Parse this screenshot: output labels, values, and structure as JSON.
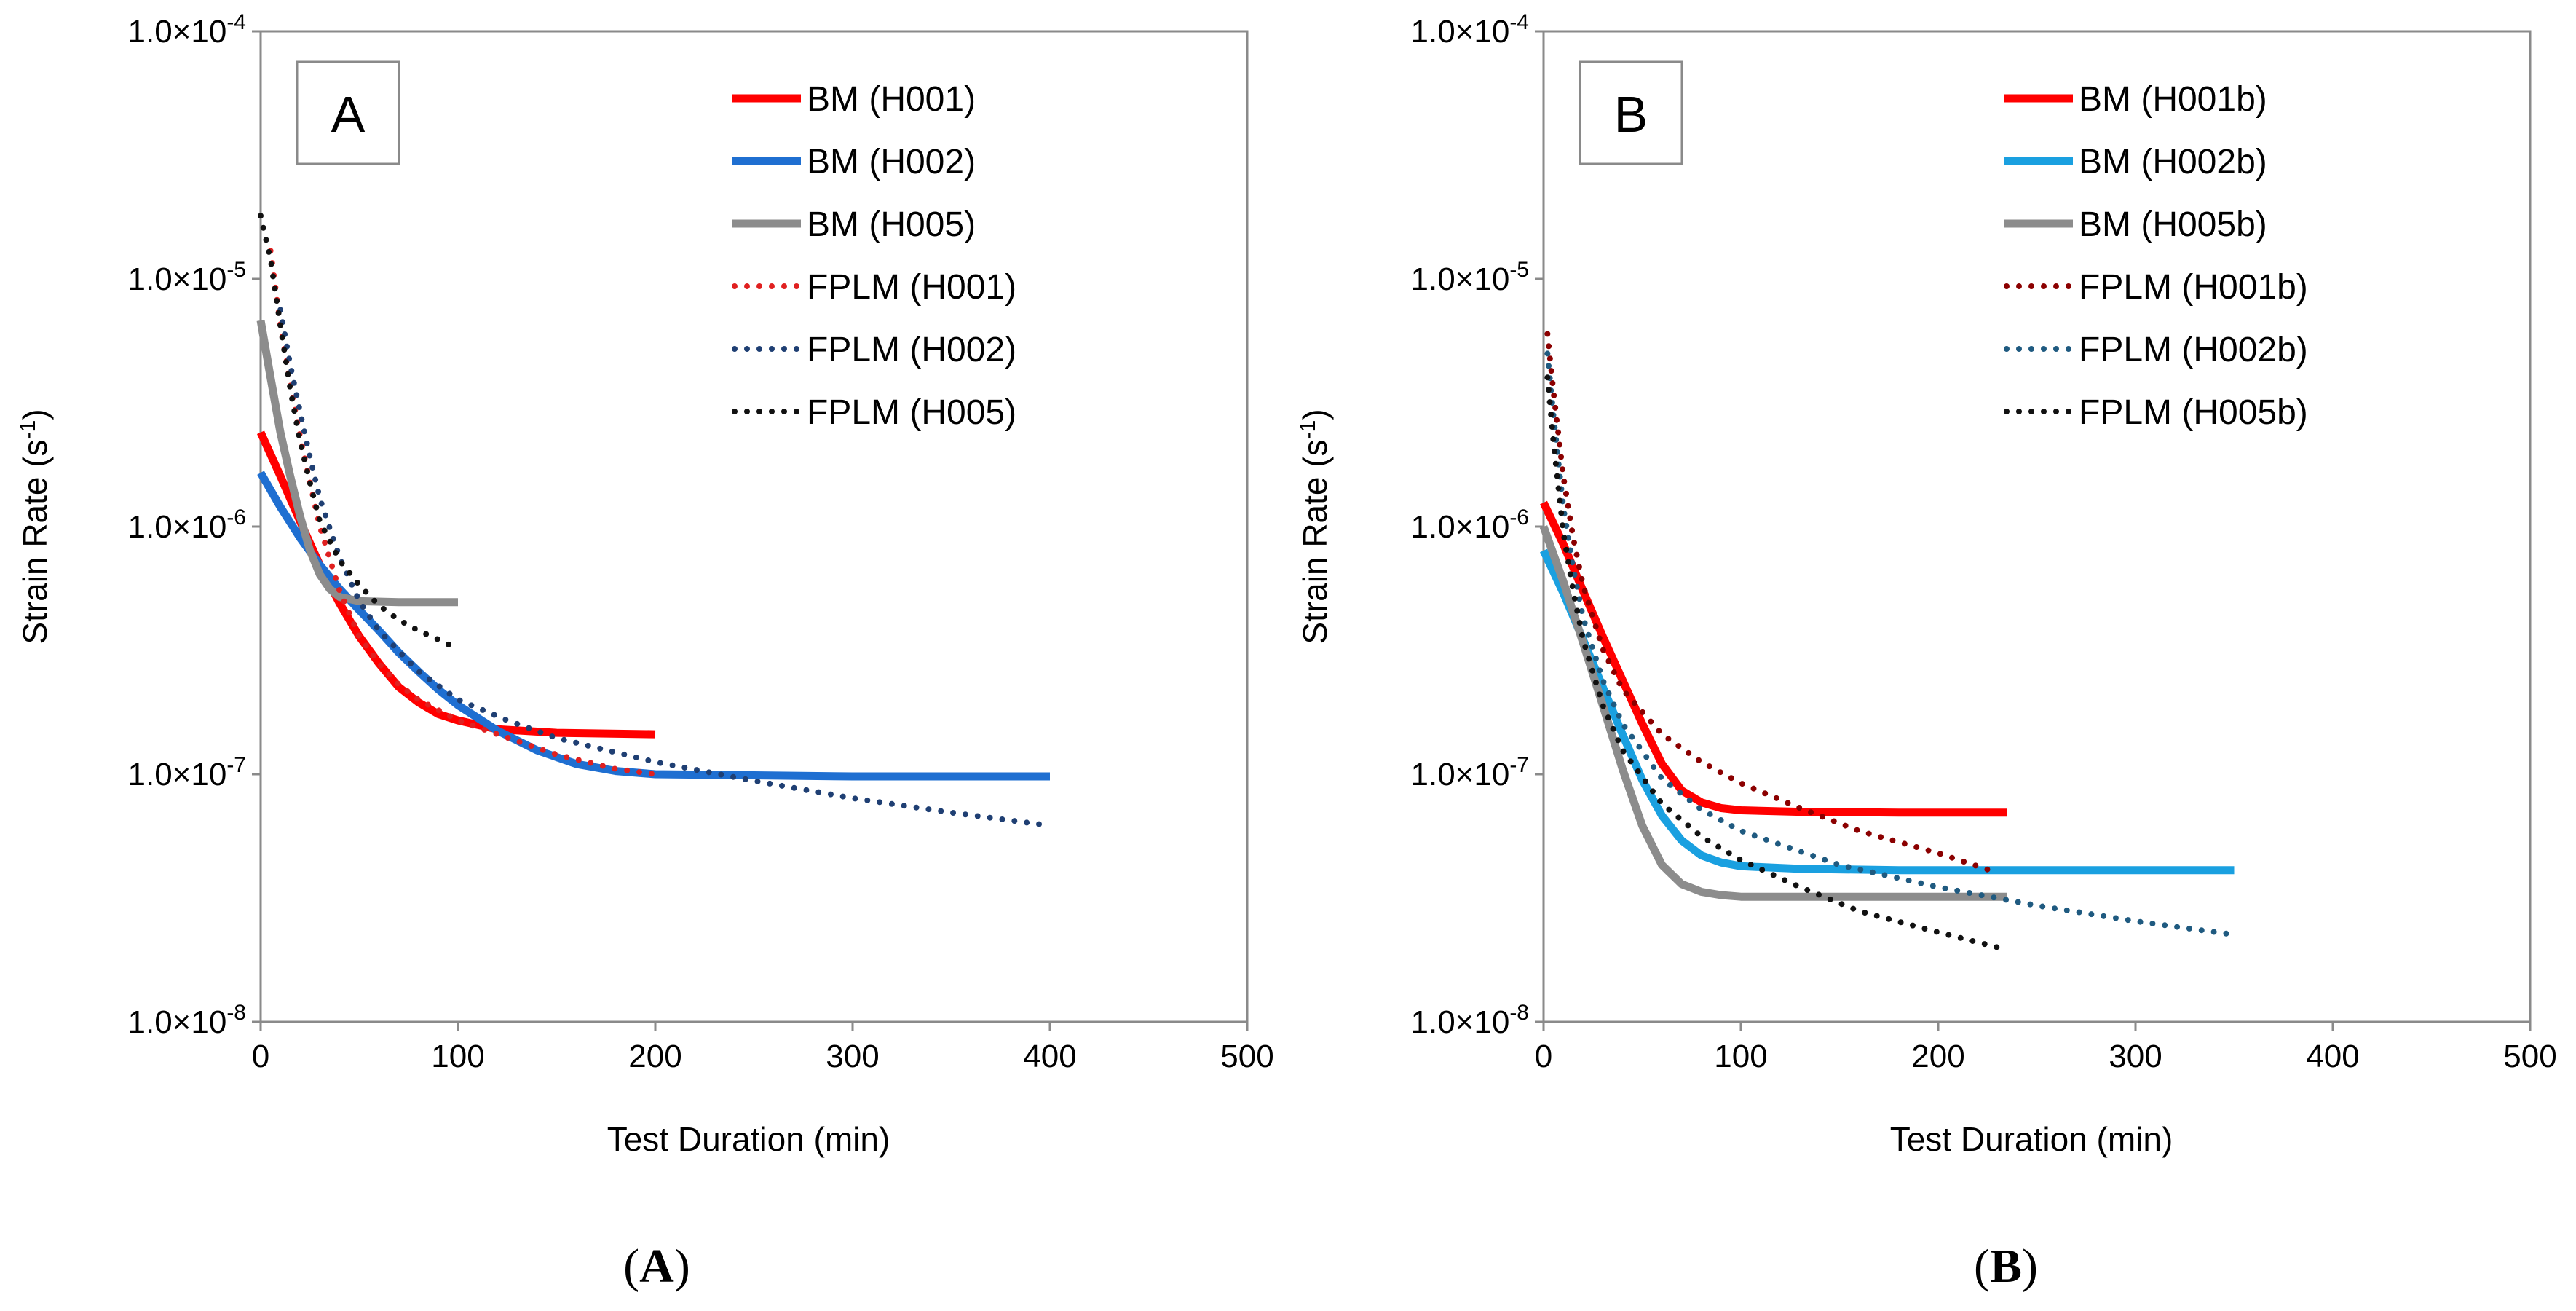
{
  "chart_data": [
    {
      "type": "line",
      "panel_label": "A",
      "caption": "(A)",
      "xlabel": "Test Duration (min)",
      "ylabel": "Strain Rate (s-1)",
      "xlim": [
        0,
        500
      ],
      "ylim": [
        1e-08,
        0.0001
      ],
      "yscale": "log",
      "x_ticks": [
        "0",
        "100",
        "200",
        "300",
        "400",
        "500"
      ],
      "y_ticks": [
        "1.0×10-8",
        "1.0×10-7",
        "1.0×10-6",
        "1.0×10-5",
        "1.0×10-4"
      ],
      "grid": false,
      "legend_position": "top-right",
      "series": [
        {
          "name": "BM (H001)",
          "color": "#ff0000",
          "style": "solid",
          "points": [
            [
              0,
              2.4e-06
            ],
            [
              10,
              1.6e-06
            ],
            [
              20,
              1.05e-06
            ],
            [
              30,
              7e-07
            ],
            [
              40,
              4.9e-07
            ],
            [
              50,
              3.6e-07
            ],
            [
              60,
              2.8e-07
            ],
            [
              70,
              2.25e-07
            ],
            [
              80,
              1.95e-07
            ],
            [
              90,
              1.75e-07
            ],
            [
              100,
              1.65e-07
            ],
            [
              120,
              1.52e-07
            ],
            [
              150,
              1.47e-07
            ],
            [
              200,
              1.45e-07
            ]
          ]
        },
        {
          "name": "BM (H002)",
          "color": "#1f6fd1",
          "style": "solid",
          "points": [
            [
              0,
              1.65e-06
            ],
            [
              10,
              1.2e-06
            ],
            [
              20,
              9e-07
            ],
            [
              30,
              7e-07
            ],
            [
              40,
              5.6e-07
            ],
            [
              50,
              4.6e-07
            ],
            [
              60,
              3.8e-07
            ],
            [
              70,
              3.1e-07
            ],
            [
              80,
              2.6e-07
            ],
            [
              90,
              2.2e-07
            ],
            [
              100,
              1.9e-07
            ],
            [
              120,
              1.5e-07
            ],
            [
              140,
              1.25e-07
            ],
            [
              160,
              1.1e-07
            ],
            [
              180,
              1.03e-07
            ],
            [
              200,
              1e-07
            ],
            [
              250,
              9.9e-08
            ],
            [
              300,
              9.8e-08
            ],
            [
              400,
              9.8e-08
            ]
          ]
        },
        {
          "name": "BM (H005)",
          "color": "#8c8c8c",
          "style": "solid",
          "points": [
            [
              0,
              6.8e-06
            ],
            [
              5,
              4e-06
            ],
            [
              10,
              2.4e-06
            ],
            [
              15,
              1.6e-06
            ],
            [
              20,
              1.1e-06
            ],
            [
              25,
              8e-07
            ],
            [
              30,
              6.4e-07
            ],
            [
              35,
              5.6e-07
            ],
            [
              40,
              5.2e-07
            ],
            [
              50,
              5e-07
            ],
            [
              70,
              4.95e-07
            ],
            [
              100,
              4.95e-07
            ]
          ]
        },
        {
          "name": "FPLM (H001)",
          "color": "#e02020",
          "style": "dotted",
          "points": [
            [
              5,
              1.3e-05
            ],
            [
              10,
              6.5e-06
            ],
            [
              15,
              3.8e-06
            ],
            [
              20,
              2.3e-06
            ],
            [
              25,
              1.5e-06
            ],
            [
              30,
              1e-06
            ],
            [
              40,
              5.5e-07
            ],
            [
              50,
              3.6e-07
            ],
            [
              60,
              2.8e-07
            ],
            [
              70,
              2.3e-07
            ],
            [
              80,
              2e-07
            ],
            [
              100,
              1.65e-07
            ],
            [
              120,
              1.45e-07
            ],
            [
              150,
              1.2e-07
            ],
            [
              180,
              1.05e-07
            ],
            [
              200,
              1e-07
            ]
          ]
        },
        {
          "name": "FPLM (H002)",
          "color": "#1f3f73",
          "style": "dotted",
          "points": [
            [
              10,
              7.5e-06
            ],
            [
              15,
              4.5e-06
            ],
            [
              20,
              2.9e-06
            ],
            [
              25,
              1.9e-06
            ],
            [
              30,
              1.3e-06
            ],
            [
              40,
              7.5e-07
            ],
            [
              50,
              5e-07
            ],
            [
              60,
              3.8e-07
            ],
            [
              80,
              2.6e-07
            ],
            [
              100,
              2e-07
            ],
            [
              125,
              1.65e-07
            ],
            [
              150,
              1.4e-07
            ],
            [
              200,
              1.12e-07
            ],
            [
              250,
              9.4e-08
            ],
            [
              300,
              8e-08
            ],
            [
              350,
              7e-08
            ],
            [
              400,
              6.2e-08
            ]
          ]
        },
        {
          "name": "FPLM (H005)",
          "color": "#111111",
          "style": "dotted",
          "points": [
            [
              0,
              1.8e-05
            ],
            [
              5,
              1.2e-05
            ],
            [
              10,
              6.5e-06
            ],
            [
              15,
              3.6e-06
            ],
            [
              20,
              2.2e-06
            ],
            [
              25,
              1.5e-06
            ],
            [
              30,
              1.05e-06
            ],
            [
              40,
              7.3e-07
            ],
            [
              50,
              5.8e-07
            ],
            [
              60,
              4.8e-07
            ],
            [
              70,
              4.2e-07
            ],
            [
              80,
              3.8e-07
            ],
            [
              90,
              3.5e-07
            ],
            [
              100,
              3.2e-07
            ]
          ]
        }
      ]
    },
    {
      "type": "line",
      "panel_label": "B",
      "caption": "(B)",
      "xlabel": "Test Duration (min)",
      "ylabel": "Strain Rate (s-1)",
      "xlim": [
        0,
        500
      ],
      "ylim": [
        1e-08,
        0.0001
      ],
      "yscale": "log",
      "x_ticks": [
        "0",
        "100",
        "200",
        "300",
        "400",
        "500"
      ],
      "y_ticks": [
        "1.0×10-8",
        "1.0×10-7",
        "1.0×10-6",
        "1.0×10-5",
        "1.0×10-4"
      ],
      "grid": false,
      "legend_position": "top-right",
      "series": [
        {
          "name": "BM (H001b)",
          "color": "#ff0000",
          "style": "solid",
          "points": [
            [
              0,
              1.25e-06
            ],
            [
              10,
              8.5e-07
            ],
            [
              20,
              5.5e-07
            ],
            [
              30,
              3.6e-07
            ],
            [
              40,
              2.4e-07
            ],
            [
              50,
              1.6e-07
            ],
            [
              60,
              1.1e-07
            ],
            [
              70,
              8.6e-08
            ],
            [
              80,
              7.7e-08
            ],
            [
              90,
              7.3e-08
            ],
            [
              100,
              7.15e-08
            ],
            [
              130,
              7.05e-08
            ],
            [
              180,
              7e-08
            ],
            [
              235,
              7e-08
            ]
          ]
        },
        {
          "name": "BM (H002b)",
          "color": "#1aa0e0",
          "style": "solid",
          "points": [
            [
              0,
              8e-07
            ],
            [
              10,
              5.4e-07
            ],
            [
              20,
              3.5e-07
            ],
            [
              30,
              2.25e-07
            ],
            [
              40,
              1.45e-07
            ],
            [
              50,
              9.5e-08
            ],
            [
              60,
              6.8e-08
            ],
            [
              70,
              5.4e-08
            ],
            [
              80,
              4.7e-08
            ],
            [
              90,
              4.4e-08
            ],
            [
              100,
              4.25e-08
            ],
            [
              130,
              4.15e-08
            ],
            [
              180,
              4.1e-08
            ],
            [
              250,
              4.1e-08
            ],
            [
              350,
              4.1e-08
            ]
          ]
        },
        {
          "name": "BM (H005b)",
          "color": "#8c8c8c",
          "style": "solid",
          "points": [
            [
              0,
              1e-06
            ],
            [
              10,
              6e-07
            ],
            [
              20,
              3.4e-07
            ],
            [
              30,
              1.9e-07
            ],
            [
              40,
              1.05e-07
            ],
            [
              50,
              6.2e-08
            ],
            [
              60,
              4.3e-08
            ],
            [
              70,
              3.6e-08
            ],
            [
              80,
              3.35e-08
            ],
            [
              90,
              3.25e-08
            ],
            [
              100,
              3.2e-08
            ],
            [
              150,
              3.2e-08
            ],
            [
              235,
              3.2e-08
            ]
          ]
        },
        {
          "name": "FPLM (H001b)",
          "color": "#8b0000",
          "style": "dotted",
          "points": [
            [
              2,
              6e-06
            ],
            [
              5,
              3.5e-06
            ],
            [
              10,
              1.6e-06
            ],
            [
              15,
              9e-07
            ],
            [
              20,
              5.8e-07
            ],
            [
              30,
              3.2e-07
            ],
            [
              40,
              2.2e-07
            ],
            [
              60,
              1.45e-07
            ],
            [
              80,
              1.12e-07
            ],
            [
              100,
              9.2e-08
            ],
            [
              130,
              7.3e-08
            ],
            [
              160,
              5.9e-08
            ],
            [
              200,
              4.8e-08
            ],
            [
              230,
              4e-08
            ]
          ]
        },
        {
          "name": "FPLM (H002b)",
          "color": "#1f5a80",
          "style": "dotted",
          "points": [
            [
              2,
              5e-06
            ],
            [
              5,
              2.8e-06
            ],
            [
              10,
              1.2e-06
            ],
            [
              15,
              6.8e-07
            ],
            [
              20,
              4.3e-07
            ],
            [
              30,
              2.4e-07
            ],
            [
              40,
              1.6e-07
            ],
            [
              60,
              9.6e-08
            ],
            [
              80,
              7.2e-08
            ],
            [
              100,
              5.9e-08
            ],
            [
              150,
              4.3e-08
            ],
            [
              200,
              3.5e-08
            ],
            [
              250,
              2.95e-08
            ],
            [
              300,
              2.55e-08
            ],
            [
              350,
              2.25e-08
            ]
          ]
        },
        {
          "name": "FPLM (H005b)",
          "color": "#111111",
          "style": "dotted",
          "points": [
            [
              2,
              4e-06
            ],
            [
              5,
              2.2e-06
            ],
            [
              10,
              9.5e-07
            ],
            [
              15,
              5.5e-07
            ],
            [
              20,
              3.5e-07
            ],
            [
              30,
              1.9e-07
            ],
            [
              40,
              1.25e-07
            ],
            [
              60,
              7.6e-08
            ],
            [
              80,
              5.6e-08
            ],
            [
              100,
              4.5e-08
            ],
            [
              130,
              3.5e-08
            ],
            [
              160,
              2.8e-08
            ],
            [
              200,
              2.3e-08
            ],
            [
              230,
              2e-08
            ]
          ]
        }
      ]
    }
  ]
}
